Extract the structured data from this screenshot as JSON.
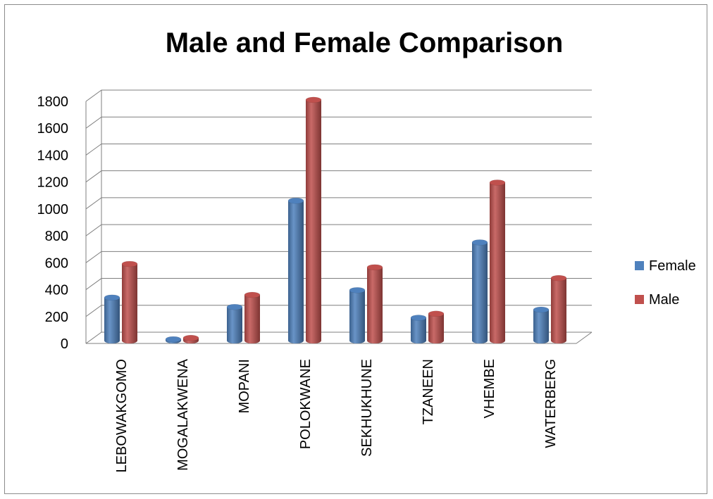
{
  "chart_data": {
    "type": "bar",
    "title": "Male and Female Comparison",
    "xlabel": "",
    "ylabel": "",
    "ylim": [
      0,
      1800
    ],
    "yticks": [
      0,
      200,
      400,
      600,
      800,
      1000,
      1200,
      1400,
      1600,
      1800
    ],
    "grid": true,
    "legend_position": "right",
    "categories": [
      "LEBOWAKGOMO",
      "MOGALAKWENA",
      "MOPANI",
      "POLOKWANE",
      "SEKHUKHUNE",
      "TZANEEN",
      "VHEMBE",
      "WATERBERG"
    ],
    "series": [
      {
        "name": "Female",
        "color": "#4f81bd",
        "values": [
          320,
          10,
          250,
          1040,
          375,
          170,
          730,
          230
        ]
      },
      {
        "name": "Male",
        "color": "#c0504d",
        "values": [
          570,
          20,
          340,
          1790,
          545,
          200,
          1175,
          465
        ]
      }
    ]
  }
}
